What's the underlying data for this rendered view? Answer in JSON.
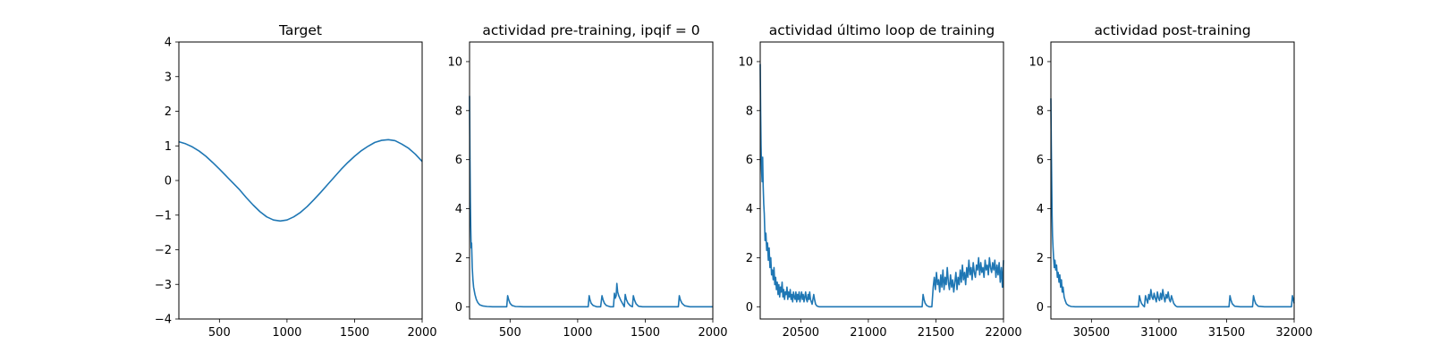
{
  "chart_data": [
    {
      "type": "line",
      "title": "Target",
      "xlabel": "",
      "ylabel": "",
      "xlim": [
        200,
        2000
      ],
      "ylim": [
        -4,
        4
      ],
      "xticks": [
        500,
        1000,
        1500,
        2000
      ],
      "yticks": [
        -4,
        -3,
        -2,
        -1,
        0,
        1,
        2,
        3,
        4
      ],
      "ytick_labels": [
        "−4",
        "−3",
        "−2",
        "−1",
        "0",
        "1",
        "2",
        "3",
        "4"
      ],
      "grid": false,
      "series": [
        {
          "color": "#1f77b4",
          "x": [
            200,
            250,
            300,
            350,
            400,
            450,
            500,
            550,
            600,
            650,
            700,
            750,
            800,
            850,
            900,
            950,
            1000,
            1050,
            1100,
            1150,
            1200,
            1250,
            1300,
            1350,
            1400,
            1450,
            1500,
            1550,
            1600,
            1650,
            1700,
            1750,
            1800,
            1850,
            1900,
            1950,
            2000
          ],
          "y": [
            1.12,
            1.06,
            0.97,
            0.85,
            0.7,
            0.52,
            0.33,
            0.13,
            -0.07,
            -0.27,
            -0.5,
            -0.71,
            -0.9,
            -1.05,
            -1.14,
            -1.17,
            -1.14,
            -1.05,
            -0.92,
            -0.75,
            -0.55,
            -0.34,
            -0.12,
            0.1,
            0.32,
            0.52,
            0.7,
            0.86,
            0.99,
            1.1,
            1.16,
            1.18,
            1.15,
            1.05,
            0.93,
            0.76,
            0.55
          ]
        }
      ]
    },
    {
      "type": "line",
      "title": "actividad pre-training, ipqif = 0",
      "xlabel": "",
      "ylabel": "",
      "xlim": [
        200,
        2000
      ],
      "ylim": [
        -0.5,
        10.8
      ],
      "xticks": [
        500,
        1000,
        1500,
        2000
      ],
      "yticks": [
        0,
        2,
        4,
        6,
        8,
        10
      ],
      "ytick_labels": [
        "0",
        "2",
        "4",
        "6",
        "8",
        "10"
      ],
      "grid": false,
      "series": [
        {
          "color": "#1f77b4",
          "x": [
            200,
            203,
            206,
            209,
            212,
            215,
            220,
            225,
            230,
            240,
            250,
            260,
            275,
            300,
            330,
            370,
            420,
            475,
            482,
            490,
            500,
            515,
            540,
            600,
            700,
            800,
            900,
            1000,
            1078,
            1085,
            1092,
            1100,
            1115,
            1140,
            1170,
            1180,
            1188,
            1198,
            1212,
            1240,
            1265,
            1272,
            1278,
            1285,
            1290,
            1296,
            1304,
            1312,
            1320,
            1330,
            1345,
            1352,
            1360,
            1372,
            1390,
            1405,
            1412,
            1420,
            1432,
            1450,
            1480,
            1550,
            1650,
            1745,
            1752,
            1760,
            1772,
            1792,
            1830,
            1900,
            2000
          ],
          "y": [
            8.6,
            6.1,
            4.3,
            3.2,
            2.4,
            2.6,
            1.6,
            1.1,
            0.8,
            0.5,
            0.3,
            0.18,
            0.08,
            0.03,
            0.01,
            0.0,
            0.0,
            0.0,
            0.45,
            0.28,
            0.14,
            0.05,
            0.01,
            0.0,
            0.0,
            0.0,
            0.0,
            0.0,
            0.0,
            0.45,
            0.27,
            0.14,
            0.05,
            0.0,
            0.0,
            0.45,
            0.28,
            0.14,
            0.05,
            0.0,
            0.0,
            0.55,
            0.35,
            0.45,
            0.95,
            0.6,
            0.45,
            0.35,
            0.25,
            0.15,
            0.0,
            0.5,
            0.3,
            0.15,
            0.04,
            0.0,
            0.45,
            0.28,
            0.12,
            0.02,
            0.0,
            0.0,
            0.0,
            0.0,
            0.45,
            0.28,
            0.14,
            0.04,
            0.0,
            0.0,
            0.0
          ]
        }
      ]
    },
    {
      "type": "line",
      "title": "actividad último loop de training",
      "xlabel": "",
      "ylabel": "",
      "xlim": [
        20200,
        22000
      ],
      "ylim": [
        -0.5,
        10.8
      ],
      "xticks": [
        20500,
        21000,
        21500,
        22000
      ],
      "yticks": [
        0,
        2,
        4,
        6,
        8,
        10
      ],
      "ytick_labels": [
        "0",
        "2",
        "4",
        "6",
        "8",
        "10"
      ],
      "grid": false,
      "series": [
        {
          "color": "#1f77b4",
          "x": [
            20200,
            20203,
            20206,
            20210,
            20214,
            20218,
            20222,
            20226,
            20230,
            20236,
            20242,
            20248,
            20254,
            20260,
            20266,
            20272,
            20278,
            20284,
            20290,
            20296,
            20302,
            20308,
            20314,
            20320,
            20326,
            20332,
            20338,
            20344,
            20350,
            20356,
            20362,
            20368,
            20374,
            20380,
            20386,
            20392,
            20398,
            20404,
            20410,
            20416,
            20422,
            20428,
            20434,
            20440,
            20446,
            20452,
            20458,
            20464,
            20470,
            20476,
            20482,
            20488,
            20494,
            20500,
            20506,
            20512,
            20518,
            20524,
            20530,
            20536,
            20542,
            20548,
            20554,
            20560,
            20566,
            20572,
            20578,
            20584,
            20590,
            20596,
            20602,
            20610,
            20620,
            20635,
            20660,
            20700,
            20800,
            20900,
            21000,
            21100,
            21200,
            21300,
            21398,
            21405,
            21412,
            21420,
            21432,
            21450,
            21470,
            21480,
            21488,
            21496,
            21504,
            21512,
            21520,
            21528,
            21536,
            21544,
            21552,
            21560,
            21568,
            21576,
            21584,
            21592,
            21600,
            21608,
            21616,
            21624,
            21632,
            21640,
            21648,
            21656,
            21664,
            21672,
            21680,
            21688,
            21696,
            21704,
            21712,
            21720,
            21728,
            21736,
            21744,
            21752,
            21760,
            21768,
            21776,
            21784,
            21792,
            21800,
            21808,
            21816,
            21824,
            21832,
            21840,
            21848,
            21856,
            21864,
            21872,
            21880,
            21888,
            21896,
            21904,
            21912,
            21920,
            21928,
            21936,
            21944,
            21952,
            21960,
            21968,
            21976,
            21984,
            21992,
            22000
          ],
          "y": [
            9.9,
            8.0,
            6.6,
            5.6,
            5.1,
            6.1,
            4.9,
            4.2,
            3.8,
            2.7,
            3.0,
            2.3,
            2.6,
            1.9,
            2.4,
            1.6,
            2.0,
            1.3,
            1.5,
            1.1,
            1.6,
            0.9,
            1.2,
            0.7,
            1.0,
            0.5,
            0.9,
            0.4,
            0.8,
            0.6,
            1.0,
            0.4,
            0.7,
            0.3,
            0.6,
            0.5,
            0.8,
            0.3,
            0.6,
            0.4,
            0.7,
            0.3,
            0.5,
            0.2,
            0.6,
            0.4,
            0.3,
            0.6,
            0.2,
            0.5,
            0.3,
            0.6,
            0.2,
            0.4,
            0.6,
            0.3,
            0.5,
            0.2,
            0.4,
            0.6,
            0.3,
            0.2,
            0.5,
            0.3,
            0.6,
            0.3,
            0.2,
            0.1,
            0.3,
            0.5,
            0.3,
            0.1,
            0.03,
            0.0,
            0.0,
            0.0,
            0.0,
            0.0,
            0.0,
            0.0,
            0.0,
            0.0,
            0.0,
            0.5,
            0.3,
            0.15,
            0.05,
            0.0,
            0.0,
            0.8,
            1.2,
            0.7,
            1.4,
            0.9,
            1.1,
            0.6,
            1.3,
            0.8,
            1.5,
            0.7,
            1.2,
            0.9,
            1.6,
            1.0,
            0.7,
            1.3,
            0.8,
            1.1,
            0.6,
            1.0,
            1.4,
            0.7,
            1.2,
            0.9,
            1.5,
            1.0,
            1.7,
            1.1,
            1.4,
            0.9,
            1.6,
            1.2,
            1.9,
            1.3,
            1.6,
            1.1,
            1.8,
            1.4,
            1.2,
            1.7,
            1.5,
            2.0,
            1.3,
            1.8,
            1.4,
            1.6,
            1.2,
            1.9,
            1.5,
            1.7,
            1.3,
            2.0,
            1.6,
            1.4,
            1.8,
            1.5,
            1.9,
            1.2,
            1.7,
            1.3,
            1.8,
            1.0,
            1.6,
            0.8,
            1.9
          ]
        }
      ]
    },
    {
      "type": "line",
      "title": "actividad post-training",
      "xlabel": "",
      "ylabel": "",
      "xlim": [
        30200,
        32000
      ],
      "ylim": [
        -0.5,
        10.8
      ],
      "xticks": [
        30500,
        31000,
        31500,
        32000
      ],
      "yticks": [
        0,
        2,
        4,
        6,
        8,
        10
      ],
      "ytick_labels": [
        "0",
        "2",
        "4",
        "6",
        "8",
        "10"
      ],
      "grid": false,
      "series": [
        {
          "color": "#1f77b4",
          "x": [
            30200,
            30203,
            30206,
            30209,
            30212,
            30216,
            30220,
            30225,
            30230,
            30236,
            30242,
            30248,
            30254,
            30260,
            30266,
            30272,
            30278,
            30284,
            30290,
            30298,
            30306,
            30315,
            30330,
            30350,
            30380,
            30450,
            30550,
            30650,
            30750,
            30848,
            30855,
            30862,
            30870,
            30882,
            30892,
            30900,
            30908,
            30916,
            30924,
            30932,
            30940,
            30948,
            30956,
            30964,
            30972,
            30980,
            30988,
            30996,
            31004,
            31012,
            31020,
            31028,
            31036,
            31044,
            31052,
            31060,
            31068,
            31076,
            31084,
            31092,
            31100,
            31108,
            31116,
            31124,
            31135,
            31150,
            31175,
            31220,
            31300,
            31400,
            31518,
            31525,
            31532,
            31542,
            31560,
            31600,
            31660,
            31692,
            31699,
            31706,
            31716,
            31734,
            31780,
            31860,
            31940,
            31980,
            31987,
            31994,
            32000
          ],
          "y": [
            8.5,
            6.6,
            5.1,
            3.7,
            2.9,
            2.4,
            2.0,
            1.6,
            1.9,
            1.5,
            1.7,
            1.2,
            1.4,
            1.0,
            1.3,
            0.8,
            1.1,
            0.6,
            0.8,
            0.4,
            0.25,
            0.12,
            0.05,
            0.01,
            0.0,
            0.0,
            0.0,
            0.0,
            0.0,
            0.0,
            0.45,
            0.28,
            0.14,
            0.05,
            0.0,
            0.45,
            0.3,
            0.15,
            0.5,
            0.3,
            0.7,
            0.4,
            0.3,
            0.55,
            0.35,
            0.2,
            0.6,
            0.35,
            0.25,
            0.55,
            0.3,
            0.7,
            0.4,
            0.2,
            0.5,
            0.35,
            0.6,
            0.3,
            0.2,
            0.45,
            0.3,
            0.15,
            0.08,
            0.03,
            0.0,
            0.0,
            0.0,
            0.0,
            0.0,
            0.0,
            0.0,
            0.45,
            0.28,
            0.12,
            0.02,
            0.0,
            0.0,
            0.0,
            0.45,
            0.28,
            0.12,
            0.02,
            0.0,
            0.0,
            0.0,
            0.0,
            0.45,
            0.28,
            0.14
          ]
        }
      ]
    }
  ]
}
